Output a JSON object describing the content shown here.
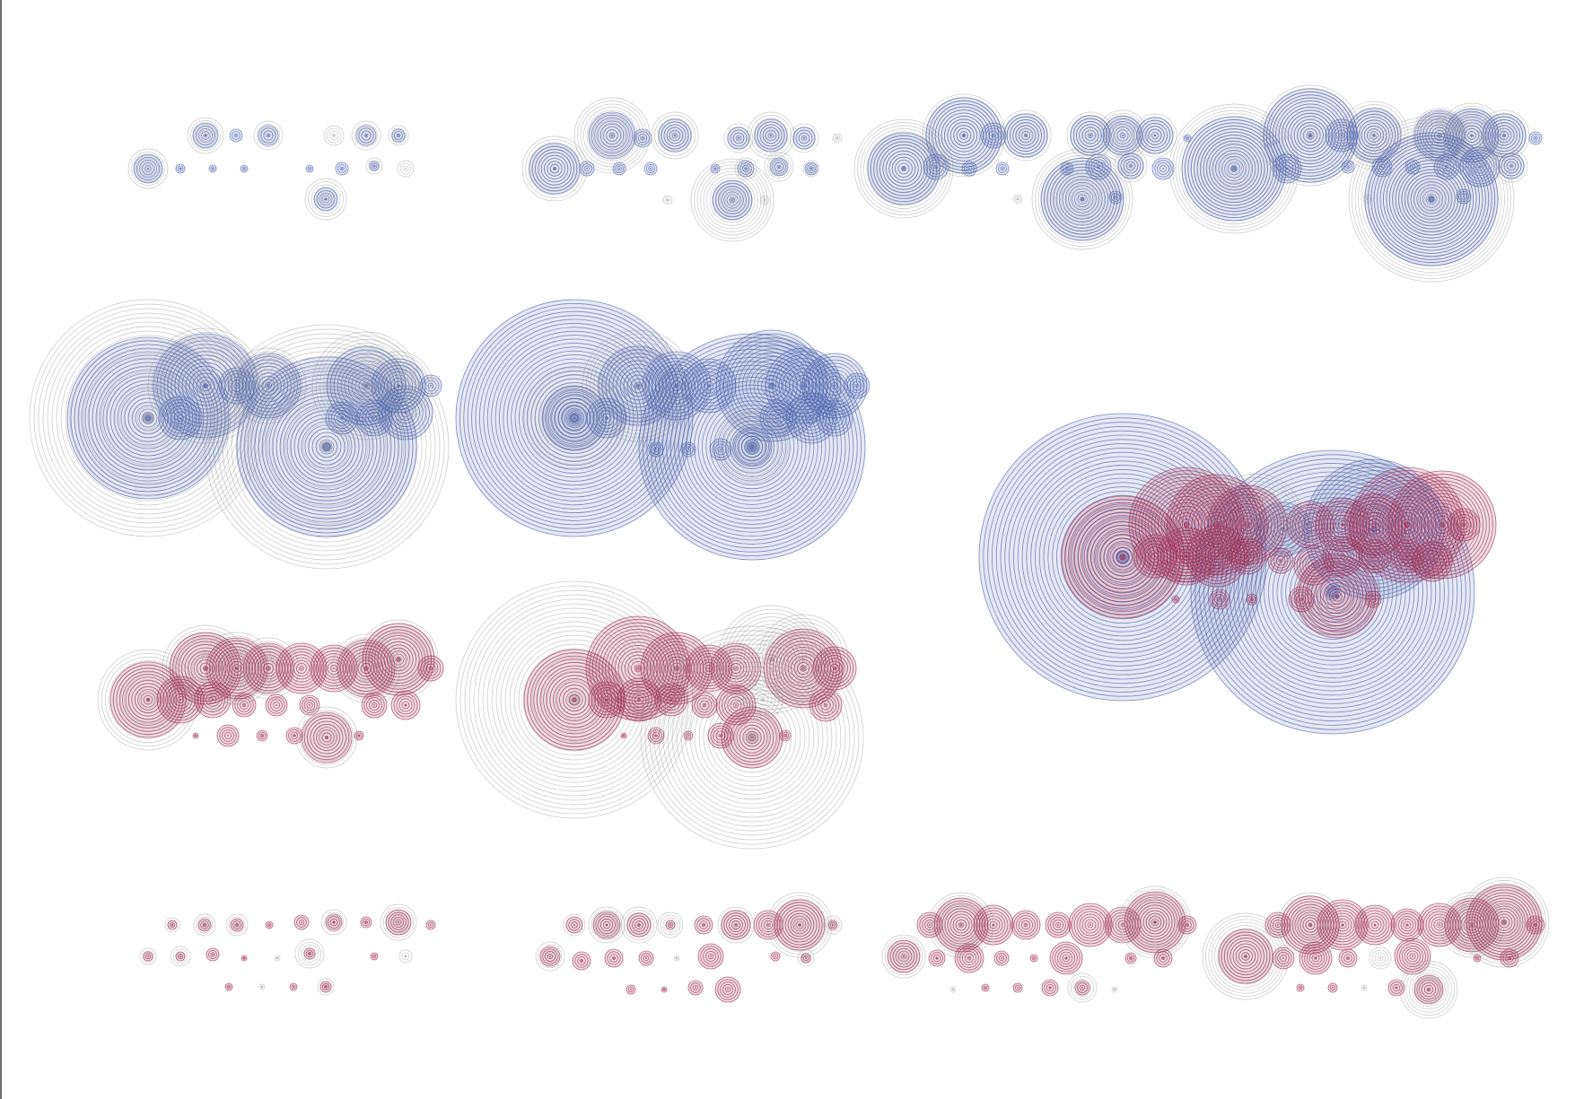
{
  "palette": {
    "background": "#ffffff",
    "blue_stroke": "#4a62b0",
    "red_stroke": "#a32a52",
    "grey_stroke": "#9a9a9a",
    "blue_fill": "#8d9bc6",
    "red_fill": "#b46e86",
    "grey_fill": "#d6d6d6",
    "edge_line": "#6e6e6e"
  },
  "artwork": {
    "style": "concentric-ring bubble clusters",
    "panels": [
      {
        "name": "blue-small-1",
        "color": "blue",
        "row": 1
      },
      {
        "name": "blue-small-2",
        "color": "blue",
        "row": 1
      },
      {
        "name": "blue-medium-3",
        "color": "blue",
        "row": 1
      },
      {
        "name": "blue-medium-4",
        "color": "blue",
        "row": 1
      },
      {
        "name": "blue-large-1",
        "color": "blue",
        "row": 2
      },
      {
        "name": "blue-large-2",
        "color": "blue",
        "row": 2
      },
      {
        "name": "mixed-overlay",
        "color": "mixed",
        "row": 2
      },
      {
        "name": "red-large-1",
        "color": "red",
        "row": 3
      },
      {
        "name": "red-large-2",
        "color": "red",
        "row": 3
      },
      {
        "name": "red-small-1",
        "color": "red",
        "row": 4
      },
      {
        "name": "red-small-2",
        "color": "red",
        "row": 4
      },
      {
        "name": "red-small-3",
        "color": "red",
        "row": 4
      },
      {
        "name": "red-small-4",
        "color": "red",
        "row": 4
      }
    ]
  }
}
